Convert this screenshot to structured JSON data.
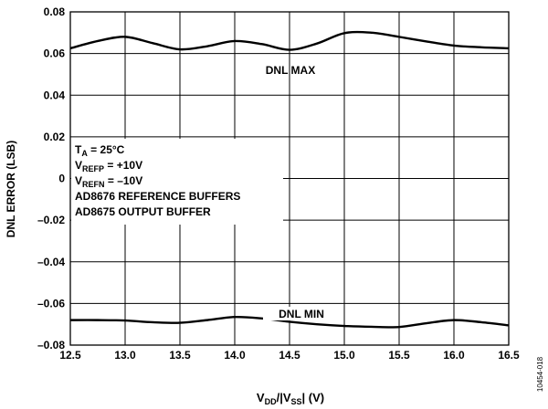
{
  "chart_data": {
    "type": "line",
    "xlabel": {
      "main": "V",
      "sub1": "DD",
      "mid": "/|V",
      "sub2": "SS",
      "end": "| (V)"
    },
    "ylabel": "DNL ERROR (LSB)",
    "xlim": [
      12.5,
      16.5
    ],
    "ylim": [
      -0.08,
      0.08
    ],
    "x_ticks": [
      "12.5",
      "13.0",
      "13.5",
      "14.0",
      "14.5",
      "15.0",
      "15.5",
      "16.0",
      "16.5"
    ],
    "y_ticks": [
      "0.08",
      "0.06",
      "0.04",
      "0.02",
      "0",
      "–0.02",
      "–0.04",
      "–0.06",
      "–0.08"
    ],
    "grid": true,
    "series": [
      {
        "name": "DNL MAX",
        "x": [
          12.5,
          12.75,
          13.0,
          13.25,
          13.5,
          13.75,
          14.0,
          14.25,
          14.5,
          14.75,
          15.0,
          15.25,
          15.5,
          15.75,
          16.0,
          16.25,
          16.5
        ],
        "y": [
          0.0625,
          0.066,
          0.068,
          0.065,
          0.062,
          0.0635,
          0.066,
          0.0645,
          0.0618,
          0.0648,
          0.0698,
          0.07,
          0.068,
          0.0658,
          0.0638,
          0.063,
          0.0625
        ]
      },
      {
        "name": "DNL MIN",
        "x": [
          12.5,
          12.75,
          13.0,
          13.25,
          13.5,
          13.75,
          14.0,
          14.25,
          14.5,
          14.75,
          15.0,
          15.25,
          15.5,
          15.75,
          16.0,
          16.25,
          16.5
        ],
        "y": [
          -0.068,
          -0.068,
          -0.0682,
          -0.069,
          -0.0693,
          -0.068,
          -0.0665,
          -0.0672,
          -0.0688,
          -0.07,
          -0.0708,
          -0.0712,
          -0.0713,
          -0.0695,
          -0.068,
          -0.069,
          -0.0705
        ]
      }
    ],
    "annotations": {
      "conditions": [
        {
          "main": "T",
          "sub": "A",
          "rest": " = 25°C"
        },
        {
          "main": "V",
          "sub": "REFP",
          "rest": " = +10V"
        },
        {
          "main": "V",
          "sub": "REFN",
          "rest": " = –10V"
        },
        {
          "main": "AD8676 REFERENCE BUFFERS",
          "sub": "",
          "rest": ""
        },
        {
          "main": "AD8675 OUTPUT BUFFER",
          "sub": "",
          "rest": ""
        }
      ],
      "series_label_max": "DNL MAX",
      "series_label_min": "DNL MIN"
    },
    "figure_id": "10454-018"
  }
}
